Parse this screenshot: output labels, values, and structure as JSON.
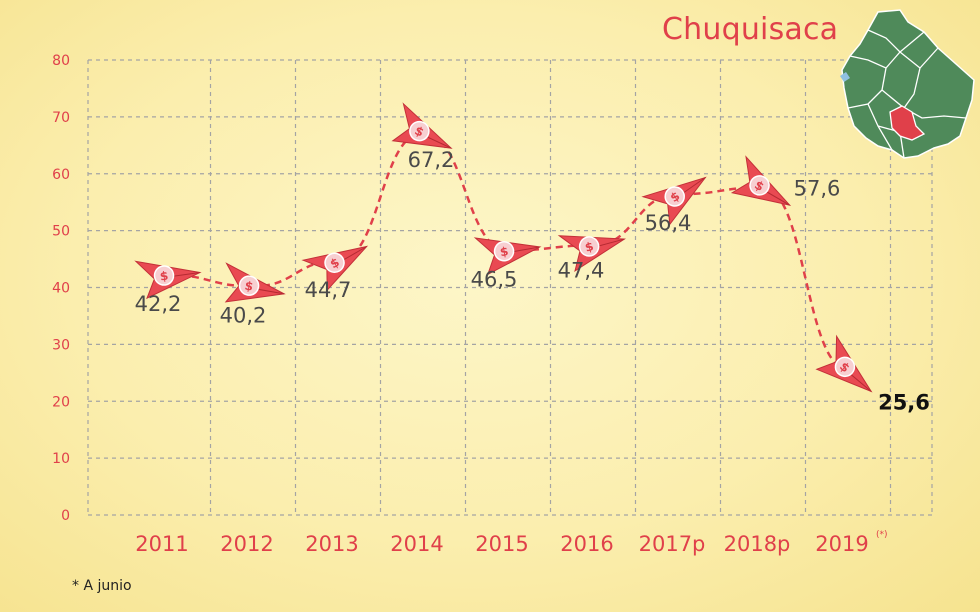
{
  "title": "Chuquisaca",
  "footnote": "* A junio",
  "chart_data": {
    "type": "line",
    "categories": [
      "2011",
      "2012",
      "2013",
      "2014",
      "2015",
      "2016",
      "2017p",
      "2018p",
      "2019"
    ],
    "category_superscripts": [
      "",
      "",
      "",
      "",
      "",
      "",
      "",
      "",
      "(*)"
    ],
    "values": [
      42.2,
      40.2,
      44.7,
      67.2,
      46.5,
      47.4,
      56.4,
      57.6,
      25.6
    ],
    "value_labels": [
      "42,2",
      "40,2",
      "44,7",
      "67,2",
      "46,5",
      "47,4",
      "56,4",
      "57,6",
      "25,6"
    ],
    "ylim": [
      0,
      80
    ],
    "yticks": [
      0,
      10,
      20,
      30,
      40,
      50,
      60,
      70,
      80
    ],
    "grid": true,
    "line_style": "dashed",
    "colors": {
      "line": "#e0404a",
      "marker": "#e94a52",
      "tick_text": "#e0404a",
      "grid": "#a4a4a4"
    }
  },
  "map": {
    "colors": {
      "land": "#4f8a5a",
      "highlight": "#e0404a",
      "lake": "#8fc0e0",
      "border": "#ffffff"
    }
  }
}
